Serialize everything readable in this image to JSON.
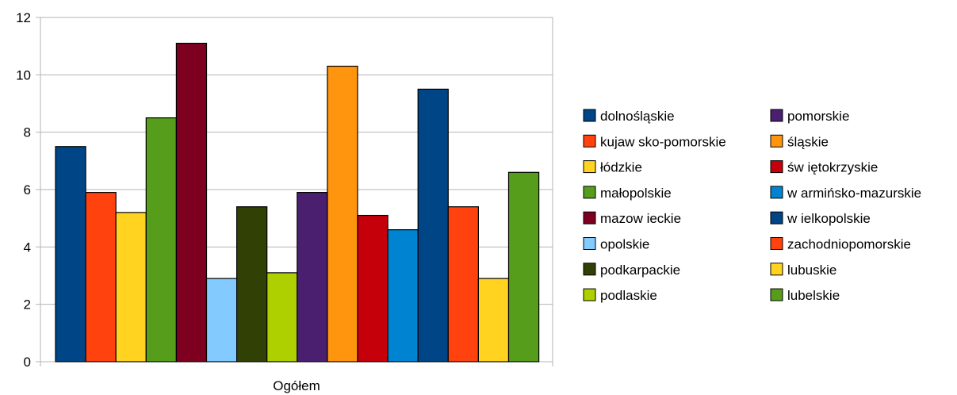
{
  "chart_data": {
    "type": "bar",
    "categories": [
      "Ogółem"
    ],
    "series": [
      {
        "name": "dolnośląskie",
        "values": [
          7.5
        ],
        "color": "#004586"
      },
      {
        "name": "kujaw sko-pomorskie",
        "values": [
          5.9
        ],
        "color": "#ff420e"
      },
      {
        "name": "łódzkie",
        "values": [
          5.2
        ],
        "color": "#ffd320"
      },
      {
        "name": "małopolskie",
        "values": [
          8.5
        ],
        "color": "#579d1c"
      },
      {
        "name": "mazow ieckie",
        "values": [
          11.1
        ],
        "color": "#7e0021"
      },
      {
        "name": "opolskie",
        "values": [
          2.9
        ],
        "color": "#83caff"
      },
      {
        "name": "podkarpackie",
        "values": [
          5.4
        ],
        "color": "#314004"
      },
      {
        "name": "podlaskie",
        "values": [
          3.1
        ],
        "color": "#aecf00"
      },
      {
        "name": "pomorskie",
        "values": [
          5.9
        ],
        "color": "#4b1f6f"
      },
      {
        "name": "śląskie",
        "values": [
          10.3
        ],
        "color": "#ff950e"
      },
      {
        "name": "św iętokrzyskie",
        "values": [
          5.1
        ],
        "color": "#c5000b"
      },
      {
        "name": "w armińsko-mazurskie",
        "values": [
          4.6
        ],
        "color": "#0084d1"
      },
      {
        "name": "w ielkopolskie",
        "values": [
          9.5
        ],
        "color": "#004586"
      },
      {
        "name": "zachodniopomorskie",
        "values": [
          5.4
        ],
        "color": "#ff420e"
      },
      {
        "name": "lubuskie",
        "values": [
          2.9
        ],
        "color": "#ffd320"
      },
      {
        "name": "lubelskie",
        "values": [
          6.6
        ],
        "color": "#579d1c"
      }
    ],
    "ylim": [
      0,
      12
    ],
    "yticks": [
      "0",
      "2",
      "4",
      "6",
      "8",
      "10",
      "12"
    ],
    "grid": true,
    "legend_position": "right"
  }
}
